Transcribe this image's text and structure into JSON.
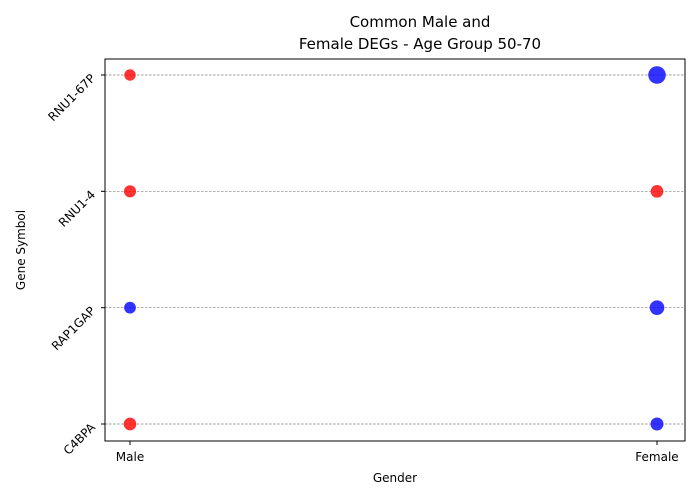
{
  "chart_data": {
    "type": "scatter",
    "title_lines": [
      "Common Male and",
      "Female DEGs - Age Group 50-70"
    ],
    "xlabel": "Gender",
    "ylabel": "Gene Symbol",
    "x_categories": [
      "Male",
      "Female"
    ],
    "y_categories": [
      "C4BPA",
      "RAP1GAP",
      "RNU1-4",
      "RNU1-67P"
    ],
    "grid": "horizontal dashed",
    "colors": {
      "up": "#ff0000",
      "down": "#0000ff"
    },
    "points": [
      {
        "x": "Male",
        "y": "RNU1-67P",
        "color": "#ff0000",
        "size": 0.85
      },
      {
        "x": "Female",
        "y": "RNU1-67P",
        "color": "#0000ff",
        "size": 2.0
      },
      {
        "x": "Male",
        "y": "RNU1-4",
        "color": "#ff0000",
        "size": 0.95
      },
      {
        "x": "Female",
        "y": "RNU1-4",
        "color": "#ff0000",
        "size": 1.05
      },
      {
        "x": "Male",
        "y": "RAP1GAP",
        "color": "#0000ff",
        "size": 0.9
      },
      {
        "x": "Female",
        "y": "RAP1GAP",
        "color": "#0000ff",
        "size": 1.4
      },
      {
        "x": "Male",
        "y": "C4BPA",
        "color": "#ff0000",
        "size": 1.05
      },
      {
        "x": "Female",
        "y": "C4BPA",
        "color": "#0000ff",
        "size": 1.1
      }
    ]
  }
}
